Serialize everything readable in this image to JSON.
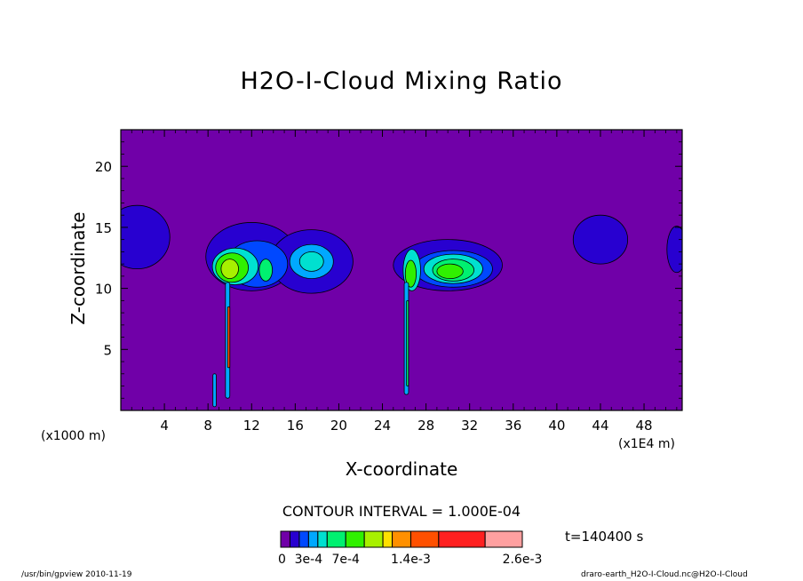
{
  "chart_data": {
    "type": "heatmap",
    "title": "H2O-I-Cloud Mixing Ratio",
    "xlabel": "X-coordinate",
    "ylabel": "Z-coordinate",
    "x_unit": "(x1E4 m)",
    "y_unit": "(x1000 m)",
    "xlim": [
      0,
      51.5
    ],
    "ylim": [
      0,
      23
    ],
    "x_ticks": [
      "4",
      "8",
      "12",
      "16",
      "20",
      "24",
      "28",
      "32",
      "36",
      "40",
      "44",
      "48"
    ],
    "y_ticks": [
      "5",
      "10",
      "15",
      "20"
    ],
    "contour_interval": "CONTOUR INTERVAL = 1.000E-04",
    "time": "t=140400 s",
    "colorbar_labels": [
      {
        "text": "0",
        "at": 0
      },
      {
        "text": "3e-4",
        "at": 3
      },
      {
        "text": "7e-4",
        "at": 7
      },
      {
        "text": "1.4e-3",
        "at": 14
      },
      {
        "text": "2.6e-3",
        "at": 26
      }
    ],
    "colorbar_levels": [
      0,
      1,
      2,
      3,
      4,
      5,
      7,
      9,
      11,
      12,
      14,
      17,
      22,
      26
    ],
    "colorbar_colors": [
      "#7000a8",
      "#2800d0",
      "#0048ff",
      "#00a8ff",
      "#00e0d0",
      "#00f070",
      "#30f000",
      "#a8f000",
      "#ffe000",
      "#ff9000",
      "#ff5000",
      "#ff2020",
      "#ffa0a0"
    ],
    "features": [
      {
        "x": 1.5,
        "z": 14.2,
        "rx": 3.0,
        "rz": 2.6,
        "level": 1
      },
      {
        "x": 44,
        "z": 14.0,
        "rx": 2.5,
        "rz": 2.0,
        "level": 1
      },
      {
        "x": 51,
        "z": 13.2,
        "rx": 0.9,
        "rz": 1.9,
        "level": 1
      },
      {
        "x": 12,
        "z": 12.6,
        "rx": 4.2,
        "rz": 2.8,
        "level": 1
      },
      {
        "x": 17.5,
        "z": 12.2,
        "rx": 3.8,
        "rz": 2.6,
        "level": 1
      },
      {
        "x": 12.5,
        "z": 12.0,
        "rx": 2.8,
        "rz": 1.9,
        "level": 2
      },
      {
        "x": 17.5,
        "z": 12.2,
        "rx": 2.0,
        "rz": 1.4,
        "level": 3
      },
      {
        "x": 17.5,
        "z": 12.2,
        "rx": 1.1,
        "rz": 0.8,
        "level": 4
      },
      {
        "x": 10.5,
        "z": 11.8,
        "rx": 2.1,
        "rz": 1.5,
        "level": 4
      },
      {
        "x": 10.2,
        "z": 11.7,
        "rx": 1.5,
        "rz": 1.2,
        "level": 6
      },
      {
        "x": 10.0,
        "z": 11.6,
        "rx": 0.8,
        "rz": 0.8,
        "level": 7
      },
      {
        "x": 13.3,
        "z": 11.5,
        "rx": 0.6,
        "rz": 0.9,
        "level": 5
      },
      {
        "x": 30,
        "z": 11.9,
        "rx": 5.0,
        "rz": 2.1,
        "level": 1
      },
      {
        "x": 30.5,
        "z": 11.6,
        "rx": 3.6,
        "rz": 1.5,
        "level": 2
      },
      {
        "x": 30.5,
        "z": 11.6,
        "rx": 2.7,
        "rz": 1.2,
        "level": 4
      },
      {
        "x": 30.5,
        "z": 11.5,
        "rx": 1.9,
        "rz": 0.9,
        "level": 5
      },
      {
        "x": 30.2,
        "z": 11.4,
        "rx": 1.2,
        "rz": 0.6,
        "level": 6
      },
      {
        "x": 26.7,
        "z": 11.5,
        "rx": 0.8,
        "rz": 1.7,
        "level": 4
      },
      {
        "x": 26.6,
        "z": 11.2,
        "rx": 0.5,
        "rz": 1.1,
        "level": 6
      }
    ],
    "columns": [
      {
        "x": 9.8,
        "z0": 1.0,
        "z1": 10.5,
        "w": 0.4,
        "level": 3
      },
      {
        "x": 9.9,
        "z0": 3.5,
        "z1": 8.5,
        "w": 0.2,
        "level": 10
      },
      {
        "x": 8.6,
        "z0": 0.3,
        "z1": 3.0,
        "w": 0.3,
        "level": 3
      },
      {
        "x": 26.2,
        "z0": 1.3,
        "z1": 10.5,
        "w": 0.4,
        "level": 3
      },
      {
        "x": 26.3,
        "z0": 2.0,
        "z1": 9.0,
        "w": 0.18,
        "level": 5
      }
    ]
  },
  "footer": {
    "left": "/usr/bin/gpview  2010-11-19",
    "right": "draro-earth_H2O-I-Cloud.nc@H2O-I-Cloud"
  }
}
